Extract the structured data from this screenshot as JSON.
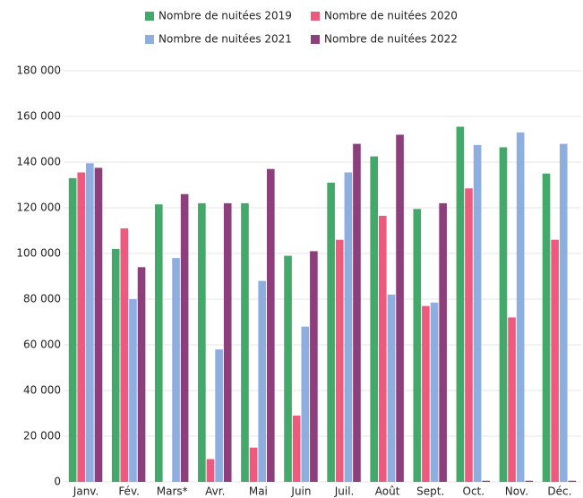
{
  "chart_data": {
    "type": "bar",
    "categories": [
      "Janv.",
      "Fév.",
      "Mars*",
      "Avr.",
      "Mai",
      "Juin",
      "Juil.",
      "Août",
      "Sept.",
      "Oct.",
      "Nov.",
      "Déc."
    ],
    "series": [
      {
        "name": "Nombre de nuitées 2019",
        "color": "#43a96a",
        "values": [
          133000,
          102000,
          121500,
          122000,
          122000,
          99000,
          131000,
          142500,
          119500,
          155500,
          146500,
          135000
        ]
      },
      {
        "name": "Nombre de nuitées 2020",
        "color": "#ee5a7e",
        "values": [
          135500,
          111000,
          null,
          10000,
          15000,
          29000,
          106000,
          116500,
          77000,
          128500,
          72000,
          106000
        ]
      },
      {
        "name": "Nombre de nuitées 2021",
        "color": "#8eaee0",
        "values": [
          139500,
          80000,
          98000,
          58000,
          88000,
          68000,
          135500,
          82000,
          78500,
          147500,
          153000,
          148000
        ]
      },
      {
        "name": "Nombre de nuitées 2022",
        "color": "#8c3f7a",
        "values": [
          137500,
          94000,
          126000,
          122000,
          137000,
          101000,
          148000,
          152000,
          122000,
          500,
          500,
          500
        ]
      }
    ],
    "ylim": [
      0,
      180000
    ],
    "yticks": [
      0,
      {
        "value": 20000,
        "label": "20 000"
      },
      {
        "value": 40000,
        "label": "40 000"
      },
      {
        "value": 60000,
        "label": "60 000"
      },
      {
        "value": 80000,
        "label": "80 000"
      },
      {
        "value": 100000,
        "label": "100 000"
      },
      {
        "value": 120000,
        "label": "120 000"
      },
      {
        "value": 140000,
        "label": "140 000"
      },
      {
        "value": 160000,
        "label": "160 000"
      },
      {
        "value": 180000,
        "label": "180 000"
      }
    ],
    "grid": true,
    "legend": "top"
  }
}
